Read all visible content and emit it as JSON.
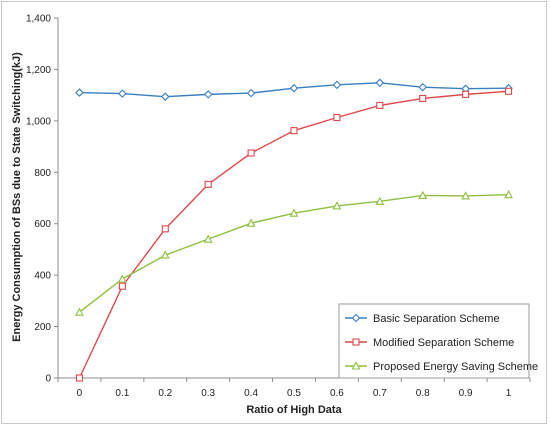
{
  "chart_data": {
    "type": "line",
    "xlabel": "Ratio of High Data",
    "ylabel": "Energy Consumption of BSs due to State Switching(kJ)",
    "x": [
      0,
      0.1,
      0.2,
      0.3,
      0.4,
      0.5,
      0.6,
      0.7,
      0.8,
      0.9,
      1
    ],
    "x_tick_labels": [
      "0",
      "0.1",
      "0.2",
      "0.3",
      "0.4",
      "0.5",
      "0.6",
      "0.7",
      "0.8",
      "0.9",
      "1"
    ],
    "y_tick_labels": [
      "0",
      "200",
      "400",
      "600",
      "800",
      "1,000",
      "1,200",
      "1,400"
    ],
    "ylim": [
      0,
      1400
    ],
    "grid": false,
    "legend_position": "bottom-right",
    "series": [
      {
        "name": "Basic Separation Scheme",
        "color": "#3a7fc1",
        "marker": "diamond",
        "values": [
          1110,
          1106,
          1094,
          1103,
          1108,
          1127,
          1140,
          1148,
          1131,
          1125,
          1127
        ]
      },
      {
        "name": "Modified Separation Scheme",
        "color": "#e0474c",
        "marker": "square",
        "values": [
          0,
          357,
          580,
          753,
          875,
          962,
          1013,
          1060,
          1087,
          1103,
          1115
        ]
      },
      {
        "name": "Proposed Energy Saving Scheme",
        "color": "#8fbf3f",
        "marker": "triangle",
        "values": [
          256,
          385,
          478,
          540,
          602,
          641,
          669,
          687,
          710,
          708,
          713
        ]
      }
    ]
  }
}
